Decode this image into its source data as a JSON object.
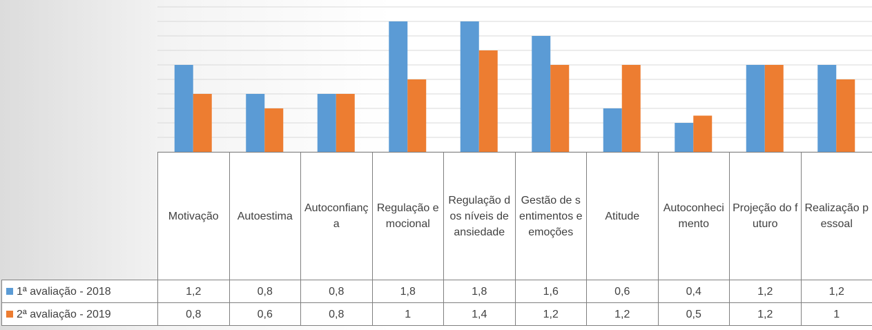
{
  "chart_data": {
    "type": "bar",
    "categories": [
      "Motivação",
      "Autoestima",
      "Autoconfiança",
      "Regulação emocional",
      "Regulação dos níveis de ansiedade",
      "Gestão de sentimentos e emoções",
      "Atitude",
      "Autoconhecimento",
      "Projeção do futuro",
      "Realização pessoal"
    ],
    "series": [
      {
        "name": "1ª avaliação - 2018",
        "color": "#5b9bd5",
        "values": [
          1.2,
          0.8,
          0.8,
          1.8,
          1.8,
          1.6,
          0.6,
          0.4,
          1.2,
          1.2
        ],
        "value_labels": [
          "1,2",
          "0,8",
          "0,8",
          "1,8",
          "1,8",
          "1,6",
          "0,6",
          "0,4",
          "1,2",
          "1,2"
        ]
      },
      {
        "name": "2ª avaliação - 2019",
        "color": "#ed7d31",
        "values": [
          0.8,
          0.6,
          0.8,
          1,
          1.4,
          1.2,
          1.2,
          0.5,
          1.2,
          1
        ],
        "value_labels": [
          "0,8",
          "0,6",
          "0,8",
          "1",
          "1,4",
          "1,2",
          "1,2",
          "0,5",
          "1,2",
          "1"
        ]
      }
    ],
    "ylim": [
      0,
      2
    ],
    "yticks": [
      0,
      0.2,
      0.4,
      0.6,
      0.8,
      1,
      1.2,
      1.4,
      1.6,
      1.8,
      2
    ],
    "grid": true
  }
}
